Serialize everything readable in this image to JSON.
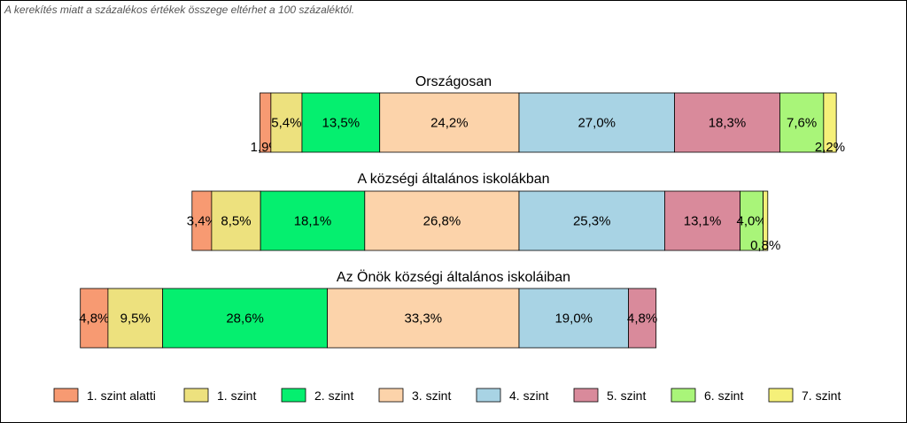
{
  "note": "A kerekítés miatt a  százalékos értékek összege eltérhet a 100 százaléktól.",
  "chart_data": {
    "type": "bar",
    "orientation": "horizontal",
    "stacked": true,
    "legend_position": "bottom",
    "categories": [
      "Országosan",
      "A községi általános iskolákban",
      "Az Önök községi általános iskoláiban"
    ],
    "series": [
      {
        "name": "1. szint alatti",
        "color": "#f79a72",
        "values": [
          1.9,
          3.4,
          4.8
        ],
        "labels": [
          "1,9%",
          "3,4%",
          "4,8%"
        ]
      },
      {
        "name": "1. szint",
        "color": "#ede17e",
        "values": [
          5.4,
          8.5,
          9.5
        ],
        "labels": [
          "5,4%",
          "8,5%",
          "9,5%"
        ]
      },
      {
        "name": "2. szint",
        "color": "#05ef6f",
        "values": [
          13.5,
          18.1,
          28.6
        ],
        "labels": [
          "13,5%",
          "18,1%",
          "28,6%"
        ]
      },
      {
        "name": "3. szint",
        "color": "#fcd3aa",
        "values": [
          24.2,
          26.8,
          33.3
        ],
        "labels": [
          "24,2%",
          "26,8%",
          "33,3%"
        ]
      },
      {
        "name": "4. szint",
        "color": "#a8d3e4",
        "values": [
          27.0,
          25.3,
          19.0
        ],
        "labels": [
          "27,0%",
          "25,3%",
          "19,0%"
        ]
      },
      {
        "name": "5. szint",
        "color": "#d98a9b",
        "values": [
          18.3,
          13.1,
          4.8
        ],
        "labels": [
          "18,3%",
          "13,1%",
          "4,8%"
        ]
      },
      {
        "name": "6. szint",
        "color": "#a9f579",
        "values": [
          7.6,
          4.0,
          0
        ],
        "labels": [
          "7,6%",
          "4,0%",
          ""
        ]
      },
      {
        "name": "7. szint",
        "color": "#f5f079",
        "values": [
          2.2,
          0.8,
          0
        ],
        "labels": [
          "2,2%",
          "0,8%",
          ""
        ]
      }
    ]
  }
}
